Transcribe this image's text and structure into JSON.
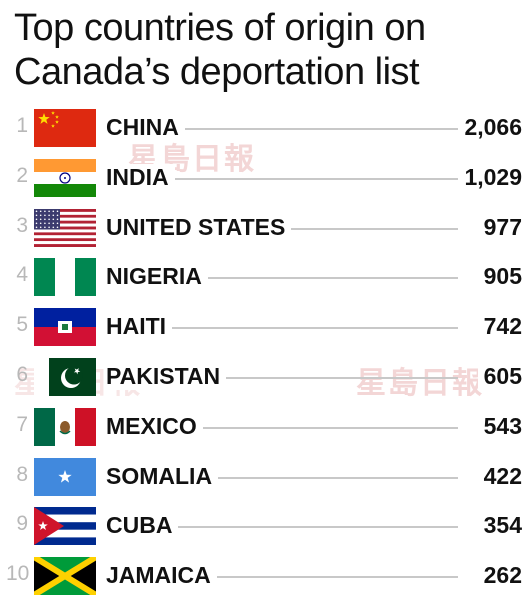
{
  "title_lines": [
    "Top countries of origin on",
    "Canada’s deportation list"
  ],
  "watermark_text": "星島日報",
  "colors": {
    "rank": "#b8b8b8",
    "leader": "#c8c8c8",
    "text": "#111111"
  },
  "chart_data": {
    "type": "bar",
    "title": "Top countries of origin on Canada’s deportation list",
    "categories": [
      "CHINA",
      "INDIA",
      "UNITED STATES",
      "NIGERIA",
      "HAITI",
      "PAKISTAN",
      "MEXICO",
      "SOMALIA",
      "CUBA",
      "JAMAICA"
    ],
    "values": [
      2066,
      1029,
      977,
      905,
      742,
      605,
      543,
      422,
      354,
      262
    ],
    "value_labels": [
      "2,066",
      "1,029",
      "977",
      "905",
      "742",
      "605",
      "543",
      "422",
      "354",
      "262"
    ],
    "ranks": [
      "1",
      "2",
      "3",
      "4",
      "5",
      "6",
      "7",
      "8",
      "9",
      "10"
    ],
    "flag_icons": [
      "china-flag-icon",
      "india-flag-icon",
      "usa-flag-icon",
      "nigeria-flag-icon",
      "haiti-flag-icon",
      "pakistan-flag-icon",
      "mexico-flag-icon",
      "somalia-flag-icon",
      "cuba-flag-icon",
      "jamaica-flag-icon"
    ]
  }
}
